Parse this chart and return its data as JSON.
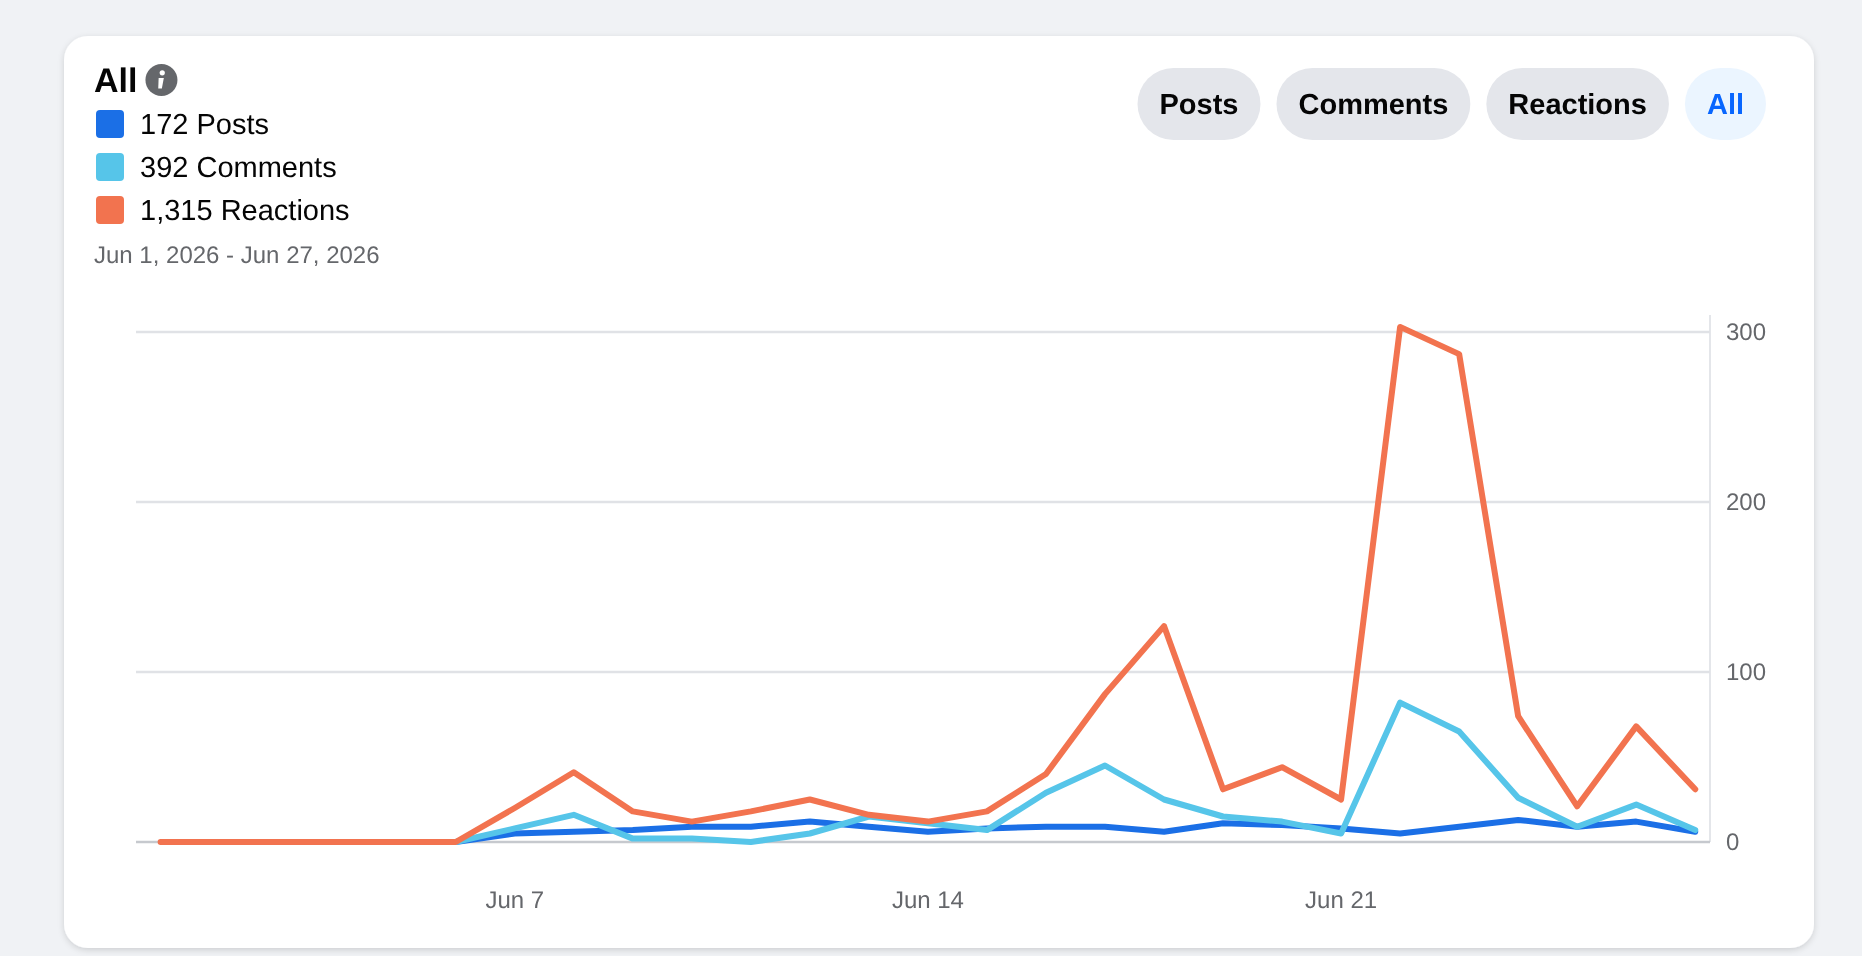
{
  "chart_data": {
    "type": "line",
    "title": "All",
    "subtitle": "Jun 1, 2026 - Jun 27, 2026",
    "annotations": [
      "Posts",
      "Comments",
      "Reactions",
      "All"
    ],
    "x": [
      "2026-06-01",
      "2026-06-02",
      "2026-06-03",
      "2026-06-04",
      "2026-06-05",
      "2026-06-06",
      "2026-06-07",
      "2026-06-08",
      "2026-06-09",
      "2026-06-10",
      "2026-06-11",
      "2026-06-12",
      "2026-06-13",
      "2026-06-14",
      "2026-06-15",
      "2026-06-16",
      "2026-06-17",
      "2026-06-18",
      "2026-06-19",
      "2026-06-20",
      "2026-06-21",
      "2026-06-22",
      "2026-06-23",
      "2026-06-24",
      "2026-06-25",
      "2026-06-26",
      "2026-06-27"
    ],
    "series": [
      {
        "name": "172 Posts",
        "color": "#1b6fe6",
        "values": [
          null,
          null,
          null,
          null,
          null,
          0,
          5,
          6,
          7,
          9,
          9,
          12,
          9,
          6,
          8,
          9,
          9,
          6,
          11,
          10,
          8,
          5,
          9,
          13,
          9,
          12,
          6
        ]
      },
      {
        "name": "392 Comments",
        "color": "#56c5e9",
        "values": [
          null,
          null,
          null,
          null,
          null,
          0,
          8,
          16,
          2,
          2,
          0,
          5,
          15,
          11,
          7,
          29,
          45,
          25,
          15,
          12,
          5,
          82,
          65,
          26,
          9,
          22,
          7
        ]
      },
      {
        "name": "1,315 Reactions",
        "color": "#f2734f",
        "values": [
          0,
          0,
          0,
          0,
          0,
          0,
          20,
          41,
          18,
          12,
          18,
          25,
          16,
          12,
          18,
          40,
          87,
          127,
          31,
          44,
          25,
          303,
          287,
          74,
          21,
          68,
          31
        ]
      }
    ],
    "xlim": [
      "2026-05-31T14:00",
      "2026-06-27T06:00"
    ],
    "xticks": [
      {
        "value": "2026-06-07",
        "label": "Jun 7"
      },
      {
        "value": "2026-06-14",
        "label": "Jun 14"
      },
      {
        "value": "2026-06-21",
        "label": "Jun 21"
      }
    ],
    "ylim": [
      0,
      310
    ],
    "yticks": [
      0,
      100,
      200,
      300
    ],
    "grid": "y",
    "legend": "top left",
    "marker": "none",
    "line_style": "solid"
  }
}
